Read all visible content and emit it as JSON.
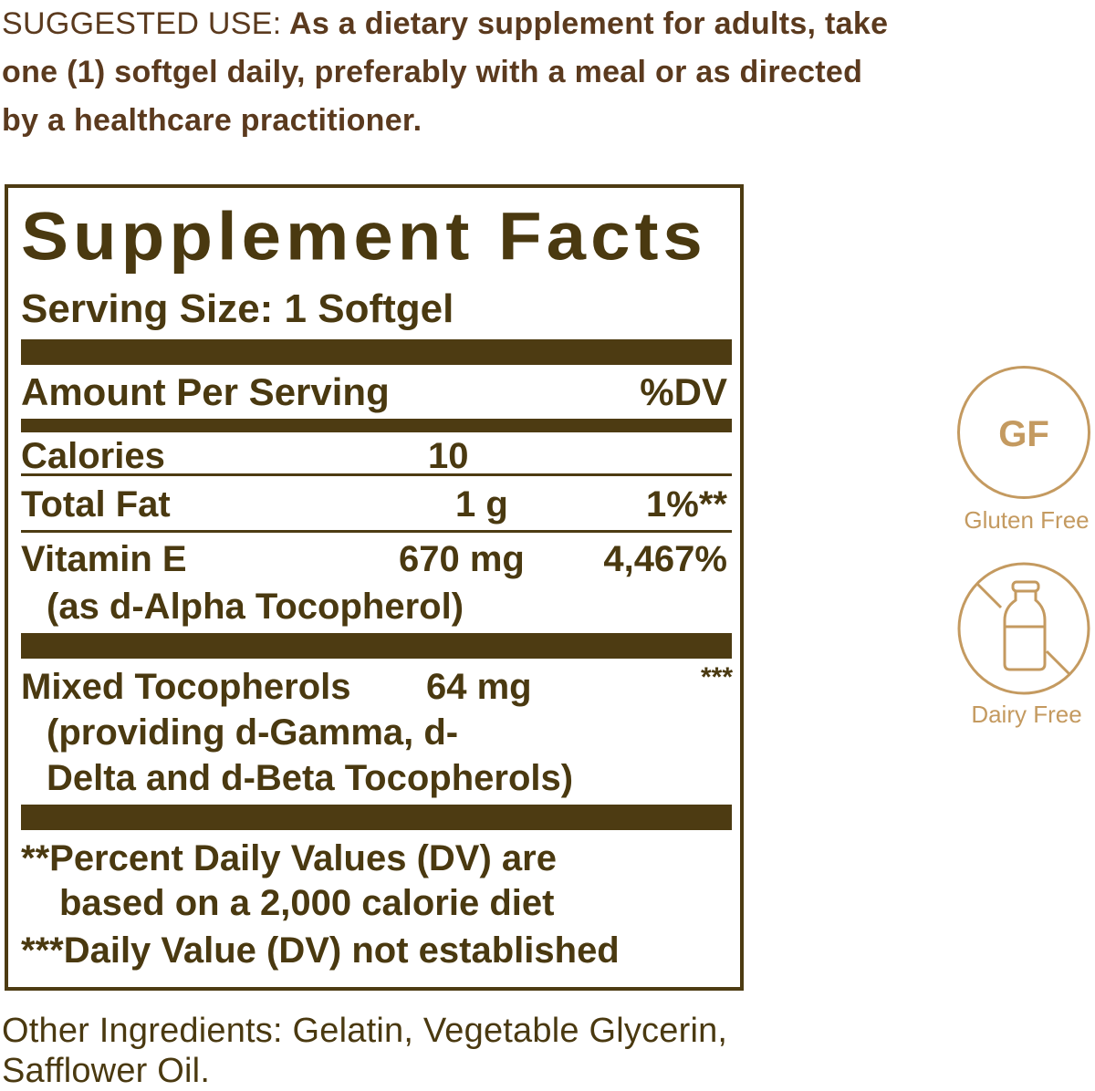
{
  "suggested_use": {
    "lead": "SUGGESTED USE:",
    "text": "As a dietary supplement for adults, take one (1) softgel daily, preferably with a meal or as directed by a healthcare practitioner."
  },
  "facts": {
    "title": "Supplement Facts",
    "serving_size": "Serving Size: 1 Softgel",
    "amount_header": "Amount Per Serving",
    "dv_header": "%DV",
    "rows": [
      {
        "name": "Calories",
        "amount": "10",
        "dv": ""
      },
      {
        "name": "Total Fat",
        "amount": "1 g",
        "dv": "1%**"
      },
      {
        "name": "Vitamin E",
        "sub": "(as d-Alpha Tocopherol)",
        "amount": "670 mg",
        "dv": "4,467%"
      },
      {
        "name": "Mixed Tocopherols",
        "sub1": "(providing d-Gamma, d-",
        "sub2": "Delta and d-Beta Tocopherols)",
        "amount": "64 mg",
        "dv": "***"
      }
    ],
    "footnotes": [
      "**Percent Daily Values (DV) are",
      "based on a 2,000 calorie diet",
      "***Daily Value (DV) not established"
    ]
  },
  "badges": [
    {
      "icon": "gluten-free-icon",
      "glyph": "GF",
      "label": "Gluten Free"
    },
    {
      "icon": "dairy-free-icon",
      "label": "Dairy Free"
    }
  ],
  "other_ingredients": "Other Ingredients: Gelatin, Vegetable Glycerin, Safflower Oil.",
  "colors": {
    "panel": "#4d3b12",
    "heading_text": "#5b3a1e",
    "badge": "#c49a60"
  }
}
